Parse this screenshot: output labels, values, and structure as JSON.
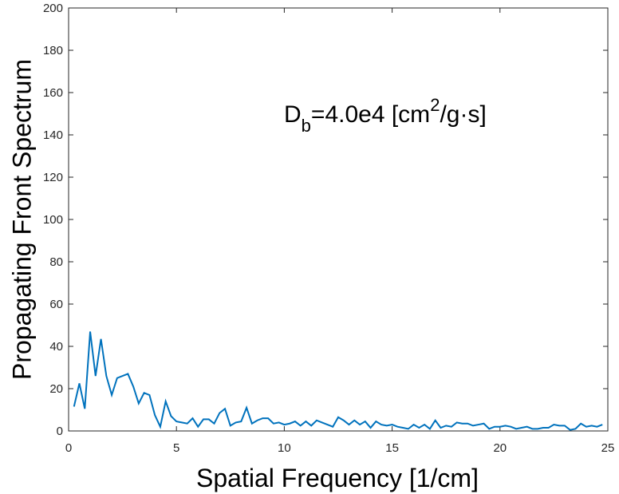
{
  "chart_data": {
    "type": "line",
    "xlabel": "Spatial Frequency [1/cm]",
    "ylabel": "Propagating Front Spectrum",
    "annotation": [
      "D",
      "b",
      "=4.0e4 [cm",
      "2",
      "/g·s]"
    ],
    "x": [
      0.25,
      0.5,
      0.75,
      1,
      1.25,
      1.5,
      1.75,
      2,
      2.25,
      2.5,
      2.75,
      3,
      3.25,
      3.5,
      3.75,
      4,
      4.25,
      4.5,
      4.75,
      5,
      5.25,
      5.5,
      5.75,
      6,
      6.25,
      6.5,
      6.75,
      7,
      7.25,
      7.5,
      7.75,
      8,
      8.25,
      8.5,
      8.75,
      9,
      9.25,
      9.5,
      9.75,
      10,
      10.25,
      10.5,
      10.75,
      11,
      11.25,
      11.5,
      11.75,
      12,
      12.25,
      12.5,
      12.75,
      13,
      13.25,
      13.5,
      13.75,
      14,
      14.25,
      14.5,
      14.75,
      15,
      15.25,
      15.5,
      15.75,
      16,
      16.25,
      16.5,
      16.75,
      17,
      17.25,
      17.5,
      17.75,
      18,
      18.25,
      18.5,
      18.75,
      19,
      19.25,
      19.5,
      19.75,
      20,
      20.25,
      20.5,
      20.75,
      21,
      21.25,
      21.5,
      21.75,
      22,
      22.25,
      22.5,
      22.75,
      23,
      23.25,
      23.5,
      23.75,
      24,
      24.25,
      24.5,
      24.75
    ],
    "series": [
      {
        "color": "#0072bd",
        "values": [
          11.5,
          22.5,
          10.5,
          47,
          26,
          43.5,
          26,
          17,
          25,
          26,
          27,
          21,
          13,
          18,
          17,
          7.5,
          2,
          14,
          7,
          4.5,
          4,
          3.5,
          6,
          2,
          5.5,
          5.5,
          3.5,
          8.5,
          10.5,
          2.5,
          4,
          4.5,
          11,
          3.5,
          5,
          6,
          6,
          3.5,
          4,
          3,
          3.5,
          4.5,
          2.5,
          4.5,
          2.5,
          5,
          4,
          3,
          2,
          6.5,
          5,
          3,
          5,
          3,
          4.5,
          1.5,
          4.5,
          3,
          2.5,
          3,
          2,
          1.5,
          1,
          3,
          1.5,
          3,
          1,
          5,
          1.5,
          2.5,
          2,
          4,
          3.5,
          3.5,
          2.5,
          3,
          3.5,
          1,
          2,
          2,
          2.5,
          2,
          1,
          1.5,
          2,
          1,
          1,
          1.5,
          1.5,
          3,
          2.5,
          2.5,
          0.5,
          1,
          3.5,
          2,
          2.5,
          2,
          3
        ]
      }
    ],
    "xlim": [
      0,
      25
    ],
    "xticks": [
      0,
      5,
      10,
      15,
      20,
      25
    ],
    "ylim": [
      0,
      200
    ],
    "yticks": [
      0,
      20,
      40,
      60,
      80,
      100,
      120,
      140,
      160,
      180,
      200
    ]
  }
}
